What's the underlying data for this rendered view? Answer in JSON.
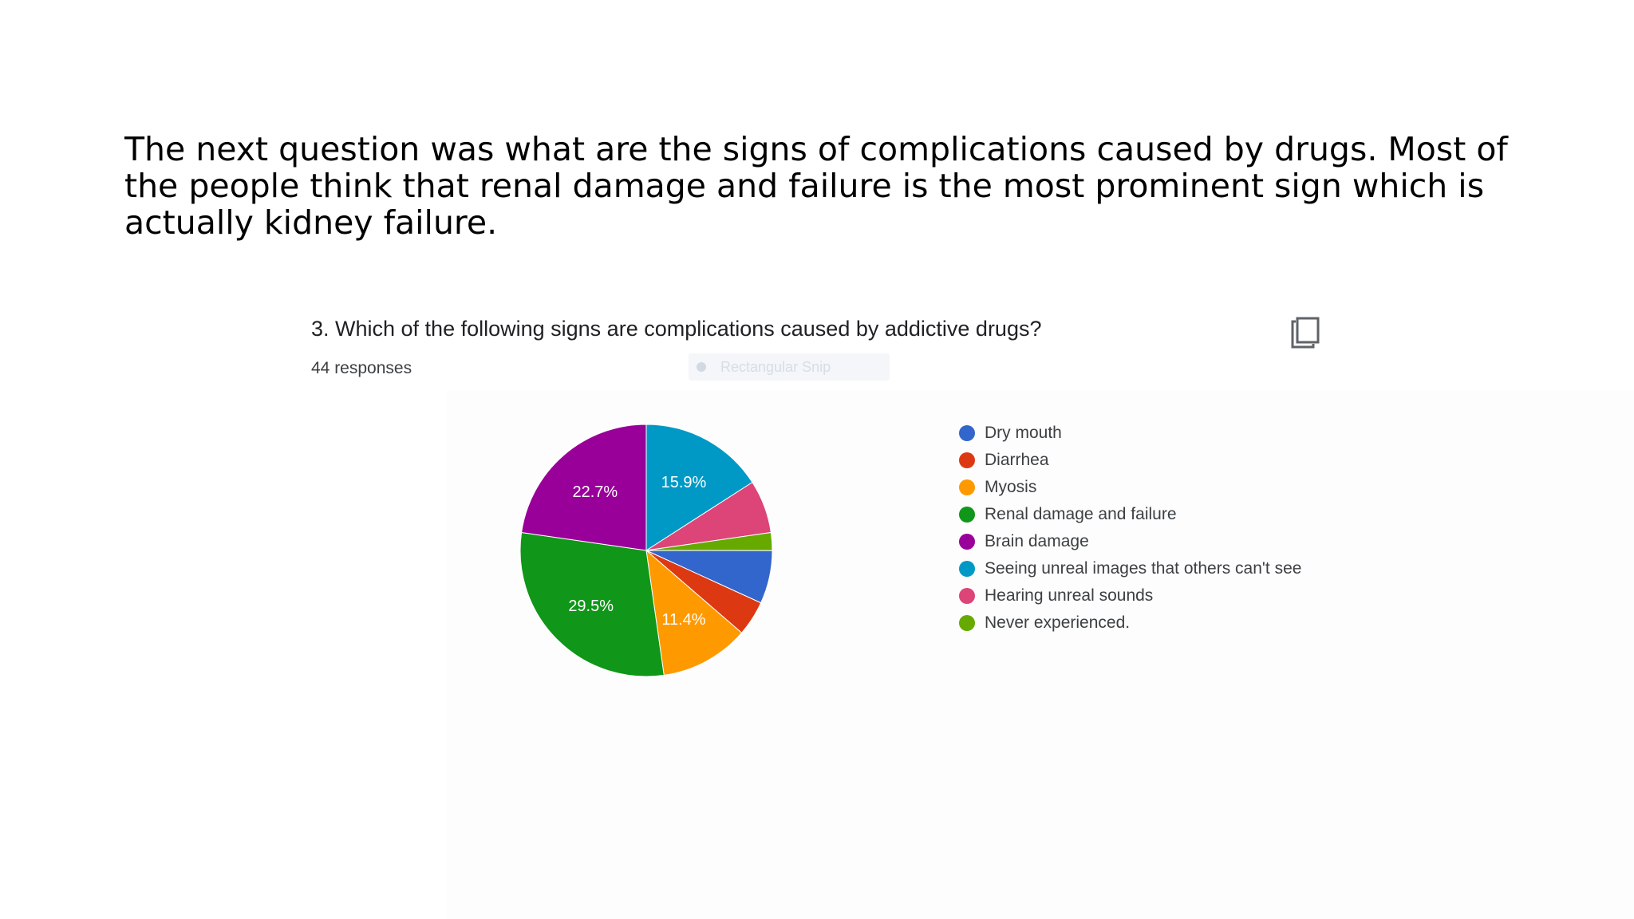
{
  "slide": {
    "text": "The next question was what are the signs of complications caused by drugs. Most of the people think that renal damage and failure is the most prominent sign which is actually kidney failure."
  },
  "form": {
    "question": "3. Which of the following signs are complications caused by addictive drugs?",
    "responses": "44 responses",
    "copy_icon": "copy-icon",
    "overlay_text": "Rectangular Snip"
  },
  "chart_data": {
    "type": "pie",
    "start_angle_deg": 0,
    "direction": "clockwise",
    "slices": [
      {
        "label": "Seeing unreal images that others can't see",
        "value": 15.9,
        "color": "#0099c6",
        "display": "15.9%"
      },
      {
        "label": "Hearing unreal sounds",
        "value": 6.8,
        "color": "#dd4477",
        "display": ""
      },
      {
        "label": "Never experienced.",
        "value": 2.3,
        "color": "#66aa00",
        "display": ""
      },
      {
        "label": "Dry mouth",
        "value": 6.8,
        "color": "#3366cc",
        "display": ""
      },
      {
        "label": "Diarrhea",
        "value": 4.5,
        "color": "#dc3912",
        "display": ""
      },
      {
        "label": "Myosis",
        "value": 11.4,
        "color": "#ff9900",
        "display": "11.4%"
      },
      {
        "label": "Renal damage and failure",
        "value": 29.5,
        "color": "#109618",
        "display": "29.5%"
      },
      {
        "label": "Brain damage",
        "value": 22.7,
        "color": "#990099",
        "display": "22.7%"
      }
    ],
    "legend": [
      {
        "label": "Dry mouth",
        "color": "#3366cc"
      },
      {
        "label": "Diarrhea",
        "color": "#dc3912"
      },
      {
        "label": "Myosis",
        "color": "#ff9900"
      },
      {
        "label": "Renal damage and failure",
        "color": "#109618"
      },
      {
        "label": "Brain damage",
        "color": "#990099"
      },
      {
        "label": "Seeing unreal images that others can't see",
        "color": "#0099c6"
      },
      {
        "label": "Hearing unreal sounds",
        "color": "#dd4477"
      },
      {
        "label": "Never experienced.",
        "color": "#66aa00"
      }
    ],
    "legend_position": "right"
  }
}
